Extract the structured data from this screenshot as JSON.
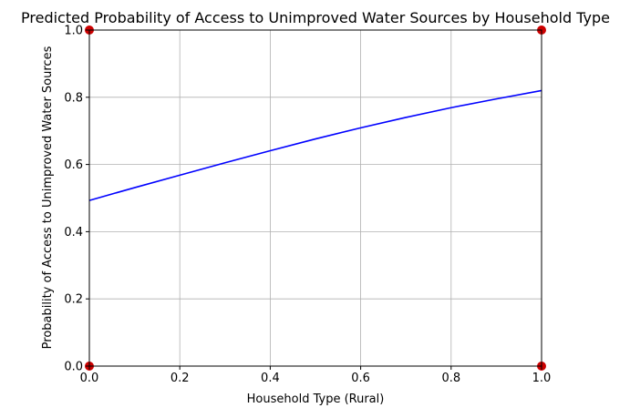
{
  "chart_data": {
    "type": "line",
    "title": "Predicted Probability of Access to Unimproved Water Sources by Household Type",
    "xlabel": "Household Type (Rural)",
    "ylabel": "Probability of Access to Unimproved Water Sources",
    "xlim": [
      0,
      1
    ],
    "ylim": [
      0,
      1
    ],
    "x_ticks": [
      0.0,
      0.2,
      0.4,
      0.6,
      0.8,
      1.0
    ],
    "y_ticks": [
      0.0,
      0.2,
      0.4,
      0.6,
      0.8,
      1.0
    ],
    "x_tick_labels": [
      "0.0",
      "0.2",
      "0.4",
      "0.6",
      "0.8",
      "1.0"
    ],
    "y_tick_labels": [
      "0.0",
      "0.2",
      "0.4",
      "0.6",
      "0.8",
      "1.0"
    ],
    "grid": true,
    "series": [
      {
        "type": "line",
        "color": "#0000ff",
        "x": [
          0.0,
          0.1,
          0.2,
          0.3,
          0.4,
          0.5,
          0.6,
          0.7,
          0.8,
          0.9,
          1.0
        ],
        "y": [
          0.493,
          0.531,
          0.568,
          0.605,
          0.641,
          0.676,
          0.709,
          0.74,
          0.769,
          0.795,
          0.82
        ]
      },
      {
        "type": "scatter",
        "color": "#cc0000",
        "x": [
          0,
          0,
          1,
          1
        ],
        "y": [
          0,
          1,
          0,
          1
        ]
      }
    ]
  }
}
